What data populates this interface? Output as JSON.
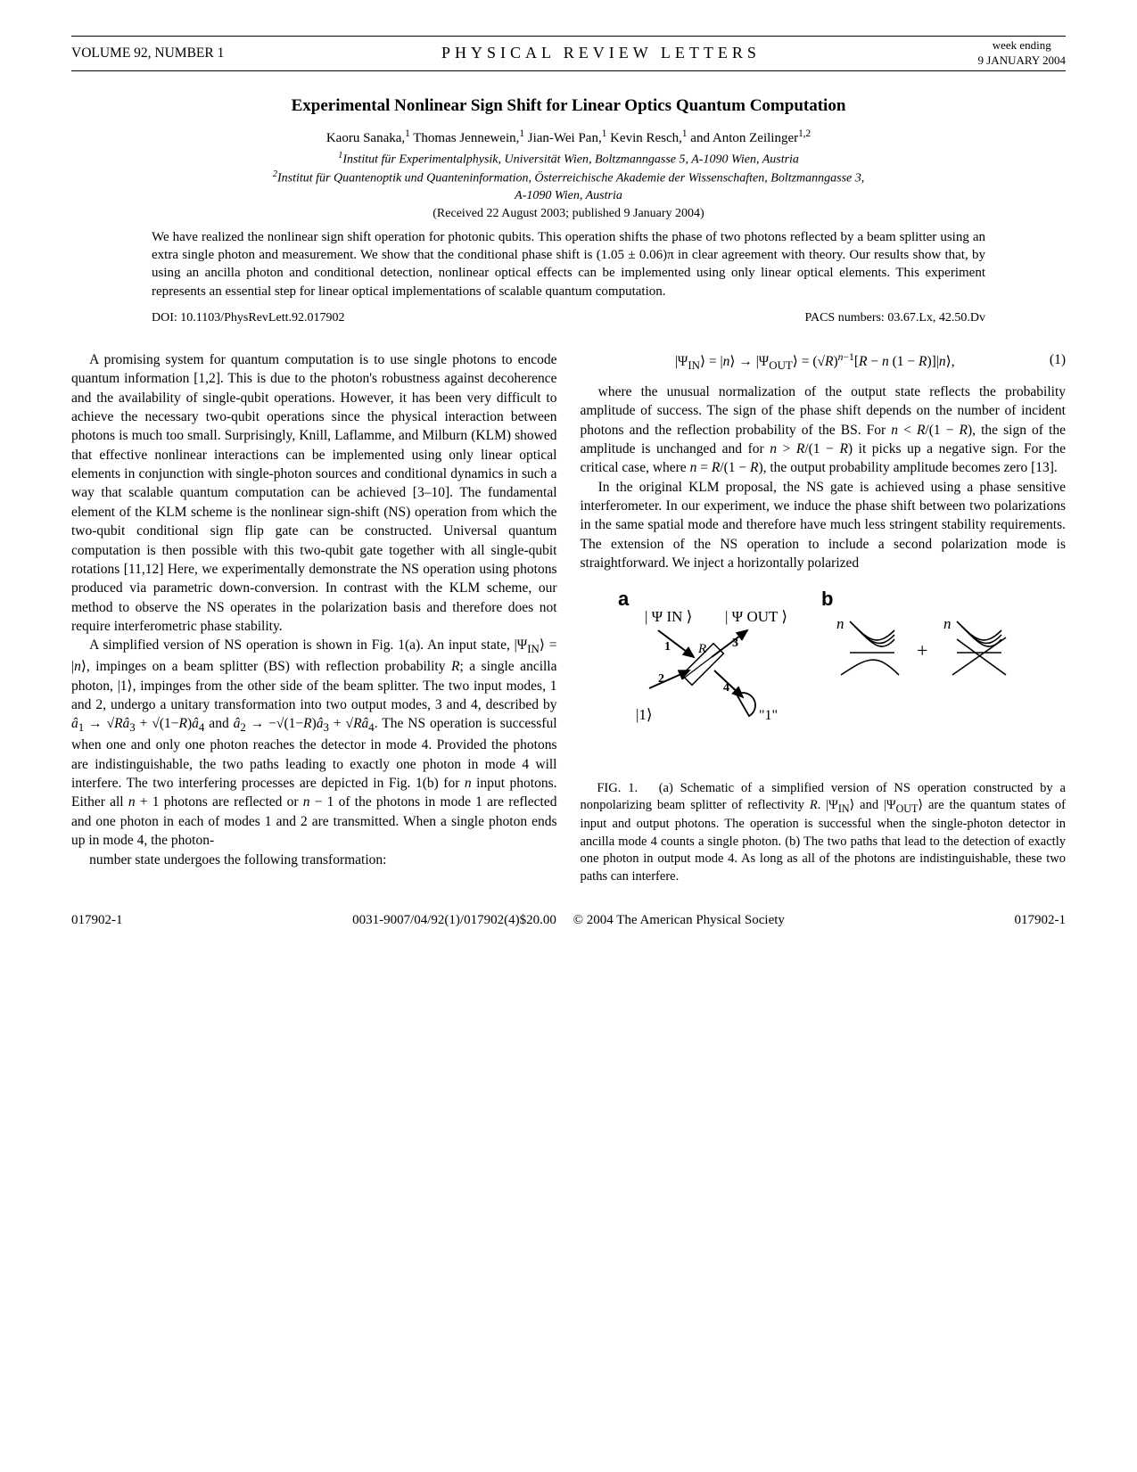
{
  "header": {
    "volume": "VOLUME 92, NUMBER 1",
    "journal": "PHYSICAL REVIEW LETTERS",
    "week_ending": "week ending",
    "date": "9 JANUARY 2004"
  },
  "title": "Experimental Nonlinear Sign Shift for Linear Optics Quantum Computation",
  "authors_html": "Kaoru Sanaka,<sup>1</sup> Thomas Jennewein,<sup>1</sup> Jian-Wei Pan,<sup>1</sup> Kevin Resch,<sup>1</sup> and Anton Zeilinger<sup>1,2</sup>",
  "affiliations": [
    "<sup>1</sup>Institut für Experimentalphysik, Universität Wien, Boltzmanngasse 5, A-1090 Wien, Austria",
    "<sup>2</sup>Institut für Quantenoptik und Quanteninformation, Österreichische Akademie der Wissenschaften, Boltzmanngasse 3,",
    "A-1090 Wien, Austria"
  ],
  "received": "(Received 22 August 2003; published 9 January 2004)",
  "abstract": "We have realized the nonlinear sign shift operation for photonic qubits. This operation shifts the phase of two photons reflected by a beam splitter using an extra single photon and measurement. We show that the conditional phase shift is (1.05 ± 0.06)π in clear agreement with theory. Our results show that, by using an ancilla photon and conditional detection, nonlinear optical effects can be implemented using only linear optical elements. This experiment represents an essential step for linear optical implementations of scalable quantum computation.",
  "doi": "DOI: 10.1103/PhysRevLett.92.017902",
  "pacs": "PACS numbers: 03.67.Lx, 42.50.Dv",
  "body": {
    "p1": "A promising system for quantum computation is to use single photons to encode quantum information [1,2]. This is due to the photon's robustness against decoherence and the availability of single-qubit operations. However, it has been very difficult to achieve the necessary two-qubit operations since the physical interaction between photons is much too small. Surprisingly, Knill, Laflamme, and Milburn (KLM) showed that effective nonlinear interactions can be implemented using only linear optical elements in conjunction with single-photon sources and conditional dynamics in such a way that scalable quantum computation can be achieved [3–10]. The fundamental element of the KLM scheme is the nonlinear sign-shift (NS) operation from which the two-qubit conditional sign flip gate can be constructed. Universal quantum computation is then possible with this two-qubit gate together with all single-qubit rotations [11,12] Here, we experimentally demonstrate the NS operation using photons produced via parametric down-conversion. In contrast with the KLM scheme, our method to observe the NS operates in the polarization basis and therefore does not require interferometric phase stability.",
    "p2_html": "A simplified version of NS operation is shown in Fig. 1(a). An input state, |Ψ<sub>IN</sub>⟩ = |<i>n</i>⟩, impinges on a beam splitter (BS) with reflection probability <i>R</i>; a single ancilla photon, |1⟩, impinges from the other side of the beam splitter. The two input modes, 1 and 2, undergo a unitary transformation into two output modes, 3 and 4, described by <i>â</i><sub>1</sub> → √<i>R</i><i>â</i><sub>3</sub> + √(1−<i>R</i>)<i>â</i><sub>4</sub> and <i>â</i><sub>2</sub> → −√(1−<i>R</i>)<i>â</i><sub>3</sub> + √<i>R</i><i>â</i><sub>4</sub>. The NS operation is successful when one and only one photon reaches the detector in mode 4. Provided the photons are indistinguishable, the two paths leading to exactly one photon in mode 4 will interfere. The two interfering processes are depicted in Fig. 1(b) for <i>n</i> input photons. Either all <i>n</i> + 1 photons are reflected or <i>n</i> − 1 of the photons in mode 1 are reflected and one photon in each of modes 1 and 2 are transmitted. When a single photon ends up in mode 4, the photon-",
    "p3": "number state undergoes the following transformation:",
    "eq1_html": "|Ψ<sub>IN</sub>⟩ = |<i>n</i>⟩ → |Ψ<sub>OUT</sub>⟩ = (√<i>R</i>)<sup><i>n</i>−1</sup>[<i>R</i> − <i>n</i> (1 − <i>R</i>)]|<i>n</i>⟩,",
    "eq1_num": "(1)",
    "p4_html": "where the unusual normalization of the output state reflects the probability amplitude of success. The sign of the phase shift depends on the number of incident photons and the reflection probability of the BS. For <i>n</i> &lt; <i>R</i>/(1 − <i>R</i>), the sign of the amplitude is unchanged and for <i>n</i> &gt; <i>R</i>/(1 − <i>R</i>) it picks up a negative sign. For the critical case, where <i>n</i> = <i>R</i>/(1 − <i>R</i>), the output probability amplitude becomes zero [13].",
    "p5": "In the original KLM proposal, the NS gate is achieved using a phase sensitive interferometer. In our experiment, we induce the phase shift between two polarizations in the same spatial mode and therefore have much less stringent stability requirements. The extension of the NS operation to include a second polarization mode is straightforward. We inject a horizontally polarized"
  },
  "figure": {
    "labels": {
      "a": "a",
      "b": "b",
      "psi_in": "| Ψ IN ⟩",
      "psi_out": "| Ψ OUT ⟩",
      "one_ket": "|1⟩",
      "n1": "n",
      "n2": "n",
      "R": "R",
      "mode1": "1",
      "mode2": "2",
      "mode3": "3",
      "mode4": "4",
      "one_det": "\"1\"",
      "plus": "+"
    },
    "caption_html": "FIG. 1.&nbsp;&nbsp;&nbsp;(a) Schematic of a simplified version of NS operation constructed by a nonpolarizing beam splitter of reflectivity <i>R</i>. |Ψ<sub>IN</sub>⟩ and |Ψ<sub>OUT</sub>⟩ are the quantum states of input and output photons. The operation is successful when the single-photon detector in ancilla mode 4 counts a single photon. (b) The two paths that lead to the detection of exactly one photon in output mode 4. As long as all of the photons are indistinguishable, these two paths can interfere.",
    "style": {
      "stroke": "#000000",
      "stroke_width": 1.5,
      "font_family": "serif"
    }
  },
  "footer": {
    "left": "017902-1",
    "center": "0031-9007/04/92(1)/017902(4)$20.00",
    "copyright": "© 2004 The American Physical Society",
    "right": "017902-1"
  }
}
